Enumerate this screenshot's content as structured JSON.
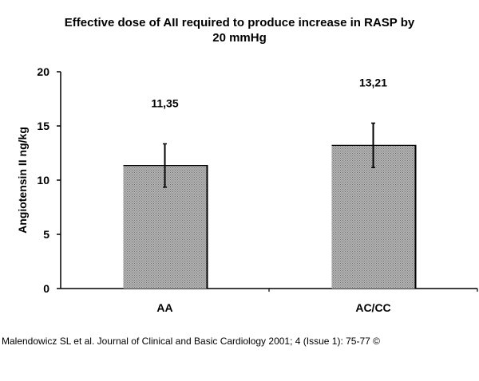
{
  "chart_data": {
    "type": "bar",
    "title_lines": [
      "Effective dose of AII required to produce increase in RASP by",
      "20 mmHg"
    ],
    "ylabel": "Angiotensin II ng/kg",
    "xlabel": "",
    "ylim": [
      0,
      20
    ],
    "yticks": [
      0,
      5,
      10,
      15,
      20
    ],
    "ytick_labels": [
      "0",
      "5",
      "10",
      "15",
      "20"
    ],
    "categories": [
      "AA",
      "AC/CC"
    ],
    "values": [
      11.35,
      13.21
    ],
    "errors": [
      2.0,
      2.05
    ],
    "value_labels": [
      "11,35",
      "13,21"
    ],
    "grid": false,
    "legend": "none"
  },
  "citation": "Malendowicz SL et al. Journal of Clinical and Basic Cardiology 2001; 4 (Issue 1): 75-77 ©",
  "colors": {
    "bar_fill": "#b4b4b4",
    "bar_pattern_line": "#6e6e6e",
    "bar_edge": "#000000",
    "axis": "#000000"
  }
}
